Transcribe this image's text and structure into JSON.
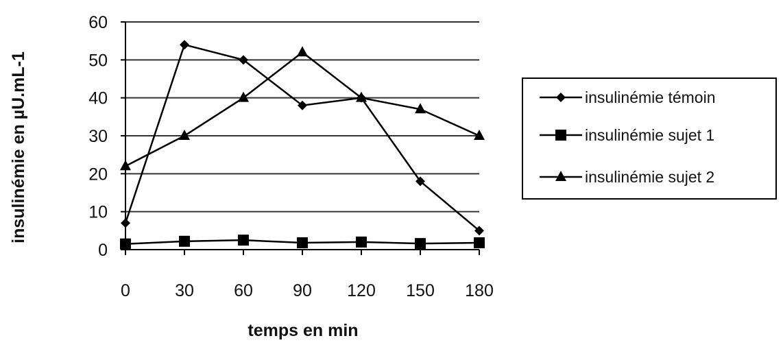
{
  "chart_data": {
    "type": "line",
    "title": "",
    "xlabel": "temps en min",
    "ylabel": "insulinémie en µU.mL-1",
    "x": [
      0,
      30,
      60,
      90,
      120,
      150,
      180
    ],
    "x_tick_labels": [
      "0",
      "30",
      "60",
      "90",
      "120",
      "150",
      "180"
    ],
    "ylim": [
      0,
      60
    ],
    "y_tick_labels": [
      "0",
      "10",
      "20",
      "30",
      "40",
      "50",
      "60"
    ],
    "grid": true,
    "legend_position": "right",
    "series": [
      {
        "name": "insulinémie témoin",
        "marker": "diamond",
        "values": [
          7,
          54,
          50,
          38,
          40,
          18,
          5
        ]
      },
      {
        "name": "insulinémie sujet 1",
        "marker": "square",
        "values": [
          1.5,
          2.2,
          2.5,
          1.8,
          2,
          1.6,
          1.8
        ]
      },
      {
        "name": "insulinémie sujet 2",
        "marker": "triangle",
        "values": [
          22,
          30,
          40,
          52,
          40,
          37,
          30
        ]
      }
    ],
    "colors": {
      "line": "#000000",
      "grid": "#333333",
      "plot_background": "#ffffff"
    }
  }
}
